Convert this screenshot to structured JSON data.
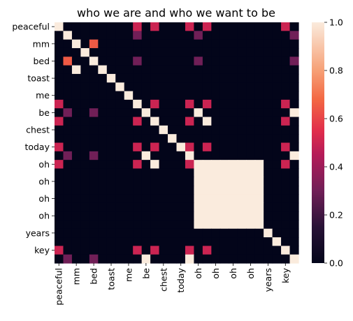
{
  "chart_data": {
    "type": "heatmap",
    "title": "who we are and who we want to be",
    "xlabel": "",
    "ylabel": "",
    "row_labels": [
      "peaceful",
      "",
      "mm",
      "",
      "bed",
      "",
      "toast",
      "",
      "me",
      "",
      "be",
      "",
      "chest",
      "",
      "today",
      "",
      "oh",
      "",
      "oh",
      "",
      "oh",
      "",
      "oh",
      "",
      "years",
      "",
      "key",
      ""
    ],
    "col_labels": [
      "peaceful",
      "",
      "mm",
      "",
      "bed",
      "",
      "toast",
      "",
      "me",
      "",
      "be",
      "",
      "chest",
      "",
      "today",
      "",
      "oh",
      "",
      "oh",
      "",
      "oh",
      "",
      "oh",
      "",
      "years",
      "",
      "key",
      ""
    ],
    "color_range": [
      0.0,
      1.0
    ],
    "colorbar_ticks": [
      "0.0",
      "0.2",
      "0.4",
      "0.6",
      "0.8",
      "1.0"
    ],
    "colormap": "rocket",
    "values": [
      [
        1,
        0,
        0,
        0,
        0,
        0,
        0,
        0,
        0,
        0.5,
        0,
        0.5,
        0,
        0,
        0,
        0.5,
        0,
        0.5,
        0,
        0,
        0,
        0,
        0,
        0,
        0,
        0,
        0.5,
        0
      ],
      [
        0,
        1,
        0,
        0,
        0,
        0,
        0,
        0,
        0,
        0.3,
        0,
        0,
        0,
        0,
        0,
        0,
        0.3,
        0,
        0,
        0,
        0,
        0,
        0,
        0,
        0,
        0,
        0,
        0.3
      ],
      [
        0,
        0,
        1,
        0,
        0.65,
        0,
        0,
        0,
        0,
        0,
        0,
        0,
        0,
        0,
        0,
        0,
        0,
        0,
        0,
        0,
        0,
        0,
        0,
        0,
        0,
        0,
        0,
        0
      ],
      [
        0,
        0,
        0,
        1,
        0,
        0,
        0,
        0,
        0,
        0,
        0,
        0,
        0,
        0,
        0,
        0,
        0,
        0,
        0,
        0,
        0,
        0,
        0,
        0,
        0,
        0,
        0,
        0
      ],
      [
        0,
        0.65,
        0,
        0,
        1,
        0,
        0,
        0,
        0,
        0.3,
        0,
        0,
        0,
        0,
        0,
        0,
        0.3,
        0,
        0,
        0,
        0,
        0,
        0,
        0,
        0,
        0,
        0,
        0.3
      ],
      [
        0,
        0,
        1,
        0,
        0,
        1,
        0,
        0,
        0,
        0,
        0,
        0,
        0,
        0,
        0,
        0,
        0,
        0,
        0,
        0,
        0,
        0,
        0,
        0,
        0,
        0,
        0,
        0
      ],
      [
        0,
        0,
        0,
        0,
        0,
        0,
        1,
        0,
        0,
        0,
        0,
        0,
        0,
        0,
        0,
        0,
        0,
        0,
        0,
        0,
        0,
        0,
        0,
        0,
        0,
        0,
        0,
        0
      ],
      [
        0,
        0,
        0,
        0,
        0,
        0,
        0,
        1,
        0,
        0,
        0,
        0,
        0,
        0,
        0,
        0,
        0,
        0,
        0,
        0,
        0,
        0,
        0,
        0,
        0,
        0,
        0,
        0
      ],
      [
        0,
        0,
        0,
        0,
        0,
        0,
        0,
        0,
        1,
        0,
        0,
        0,
        0,
        0,
        0,
        0,
        0,
        0,
        0,
        0,
        0,
        0,
        0,
        0,
        0,
        0,
        0,
        0
      ],
      [
        0.5,
        0,
        0,
        0,
        0,
        0,
        0,
        0,
        0,
        1,
        0,
        0.5,
        0,
        0,
        0,
        0.5,
        0,
        0.5,
        0,
        0,
        0,
        0,
        0,
        0,
        0,
        0,
        0.5,
        0
      ],
      [
        0,
        0.3,
        0,
        0,
        0.3,
        0,
        0,
        0,
        0,
        0,
        1,
        0,
        0,
        0,
        0,
        0,
        1,
        0,
        0,
        0,
        0,
        0,
        0,
        0,
        0,
        0,
        0,
        1
      ],
      [
        0.5,
        0,
        0,
        0,
        0,
        0,
        0,
        0,
        0,
        0.5,
        0,
        1,
        0,
        0,
        0,
        0.5,
        0,
        1,
        0,
        0,
        0,
        0,
        0,
        0,
        0,
        0,
        0.5,
        0
      ],
      [
        0,
        0,
        0,
        0,
        0,
        0,
        0,
        0,
        0,
        0,
        0,
        0,
        1,
        0,
        0,
        0,
        0,
        0,
        0,
        0,
        0,
        0,
        0,
        0,
        0,
        0,
        0,
        0
      ],
      [
        0,
        0,
        0,
        0,
        0,
        0,
        0,
        0,
        0,
        0,
        0,
        0,
        0,
        1,
        0,
        0,
        0,
        0,
        0,
        0,
        0,
        0,
        0,
        0,
        0,
        0,
        0,
        0
      ],
      [
        0.5,
        0,
        0,
        0,
        0,
        0,
        0,
        0,
        0,
        0.5,
        0,
        0.5,
        0,
        0,
        1,
        0.5,
        0,
        0.5,
        0,
        0,
        0,
        0,
        0,
        0,
        0,
        0,
        0.5,
        0
      ],
      [
        0,
        0.3,
        0,
        0,
        0.3,
        0,
        0,
        0,
        0,
        0,
        1,
        0,
        0,
        0,
        0,
        1,
        0,
        0,
        0,
        0,
        0,
        0,
        0,
        0,
        0,
        0,
        0,
        1
      ],
      [
        0.5,
        0,
        0,
        0,
        0,
        0,
        0,
        0,
        0,
        0.5,
        0,
        1,
        0,
        0,
        0,
        0.5,
        1,
        1,
        1,
        1,
        1,
        1,
        1,
        1,
        0,
        0,
        0.5,
        0
      ],
      [
        0,
        0,
        0,
        0,
        0,
        0,
        0,
        0,
        0,
        0,
        0,
        0,
        0,
        0,
        0,
        0,
        1,
        1,
        1,
        1,
        1,
        1,
        1,
        1,
        0,
        0,
        0,
        0
      ],
      [
        0,
        0,
        0,
        0,
        0,
        0,
        0,
        0,
        0,
        0,
        0,
        0,
        0,
        0,
        0,
        0,
        1,
        1,
        1,
        1,
        1,
        1,
        1,
        1,
        0,
        0,
        0,
        0
      ],
      [
        0,
        0,
        0,
        0,
        0,
        0,
        0,
        0,
        0,
        0,
        0,
        0,
        0,
        0,
        0,
        0,
        1,
        1,
        1,
        1,
        1,
        1,
        1,
        1,
        0,
        0,
        0,
        0
      ],
      [
        0,
        0,
        0,
        0,
        0,
        0,
        0,
        0,
        0,
        0,
        0,
        0,
        0,
        0,
        0,
        0,
        1,
        1,
        1,
        1,
        1,
        1,
        1,
        1,
        0,
        0,
        0,
        0
      ],
      [
        0,
        0,
        0,
        0,
        0,
        0,
        0,
        0,
        0,
        0,
        0,
        0,
        0,
        0,
        0,
        0,
        1,
        1,
        1,
        1,
        1,
        1,
        1,
        1,
        0,
        0,
        0,
        0
      ],
      [
        0,
        0,
        0,
        0,
        0,
        0,
        0,
        0,
        0,
        0,
        0,
        0,
        0,
        0,
        0,
        0,
        1,
        1,
        1,
        1,
        1,
        1,
        1,
        1,
        0,
        0,
        0,
        0
      ],
      [
        0,
        0,
        0,
        0,
        0,
        0,
        0,
        0,
        0,
        0,
        0,
        0,
        0,
        0,
        0,
        0,
        1,
        1,
        1,
        1,
        1,
        1,
        1,
        1,
        0,
        0,
        0,
        0
      ],
      [
        0,
        0,
        0,
        0,
        0,
        0,
        0,
        0,
        0,
        0,
        0,
        0,
        0,
        0,
        0,
        0,
        0,
        0,
        0,
        0,
        0,
        0,
        0,
        0,
        1,
        0,
        0,
        0
      ],
      [
        0,
        0,
        0,
        0,
        0,
        0,
        0,
        0,
        0,
        0,
        0,
        0,
        0,
        0,
        0,
        0,
        0,
        0,
        0,
        0,
        0,
        0,
        0,
        0,
        0,
        1,
        0,
        0
      ],
      [
        0.5,
        0,
        0,
        0,
        0,
        0,
        0,
        0,
        0,
        0.5,
        0,
        0.5,
        0,
        0,
        0,
        0.5,
        0,
        0.5,
        0,
        0,
        0,
        0,
        0,
        0,
        0,
        0,
        1,
        0
      ],
      [
        0,
        0.3,
        0,
        0,
        0.3,
        0,
        0,
        0,
        0,
        0,
        1,
        0,
        0,
        0,
        0,
        1,
        0,
        0,
        0,
        0,
        0,
        0,
        0,
        0,
        0,
        0,
        0,
        1
      ]
    ]
  }
}
